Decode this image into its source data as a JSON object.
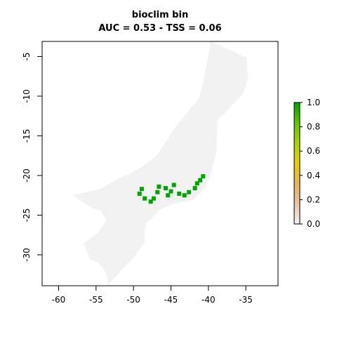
{
  "chart_data": {
    "type": "heatmap",
    "title": "bioclim bin",
    "subtitle": "AUC = 0.53 - TSS = 0.06",
    "xlabel": "",
    "ylabel": "",
    "xlim": [
      -62.2,
      -30.7
    ],
    "ylim": [
      -33.9,
      -3.1
    ],
    "x_ticks": [
      "-60",
      "-55",
      "-50",
      "-45",
      "-40",
      "-35"
    ],
    "x_tick_values": [
      -60,
      -55,
      -50,
      -45,
      -40,
      -35
    ],
    "y_ticks": [
      "-5",
      "-10",
      "-15",
      "-20",
      "-25",
      "-30"
    ],
    "y_tick_values": [
      -5,
      -10,
      -15,
      -20,
      -25,
      -30
    ],
    "grid": false,
    "legend": {
      "placement": "right",
      "range": [
        0,
        1
      ],
      "ticks": [
        "0.0",
        "0.2",
        "0.4",
        "0.6",
        "0.8",
        "1.0"
      ],
      "tick_values": [
        0.0,
        0.2,
        0.4,
        0.6,
        0.8,
        1.0
      ],
      "colors": [
        "#f2f2f2",
        "#e9c3a4",
        "#e8b35a",
        "#e8cf00",
        "#a6d600",
        "#63c400",
        "#00a600"
      ]
    },
    "colors": {
      "absent": "#f2f2f2",
      "present": "#00a600"
    },
    "classes": [
      {
        "value": 0,
        "region_lon_lat": [
          [
            -39.6,
            -3.2
          ],
          [
            -35.0,
            -5.2
          ],
          [
            -34.8,
            -7.8
          ],
          [
            -35.5,
            -9.7
          ],
          [
            -37.3,
            -11.5
          ],
          [
            -38.9,
            -13.0
          ],
          [
            -39.0,
            -17.0
          ],
          [
            -39.7,
            -19.5
          ],
          [
            -40.5,
            -21.5
          ],
          [
            -42.0,
            -23.0
          ],
          [
            -44.5,
            -23.4
          ],
          [
            -46.5,
            -24.2
          ],
          [
            -48.4,
            -26.0
          ],
          [
            -48.7,
            -28.5
          ],
          [
            -50.2,
            -30.5
          ],
          [
            -51.6,
            -31.8
          ],
          [
            -53.3,
            -33.6
          ],
          [
            -53.6,
            -32.2
          ],
          [
            -54.5,
            -31.0
          ],
          [
            -55.7,
            -30.5
          ],
          [
            -56.6,
            -28.6
          ],
          [
            -54.6,
            -27.2
          ],
          [
            -53.5,
            -25.7
          ],
          [
            -54.3,
            -24.4
          ],
          [
            -56.0,
            -23.8
          ],
          [
            -57.9,
            -22.5
          ],
          [
            -54.5,
            -21.8
          ],
          [
            -52.0,
            -20.5
          ],
          [
            -50.2,
            -19.7
          ],
          [
            -48.7,
            -18.9
          ],
          [
            -46.8,
            -17.5
          ],
          [
            -45.6,
            -15.8
          ],
          [
            -44.5,
            -14.2
          ],
          [
            -42.7,
            -12.0
          ],
          [
            -41.2,
            -10.4
          ],
          [
            -40.6,
            -8.2
          ],
          [
            -40.1,
            -5.8
          ]
        ]
      },
      {
        "value": 1,
        "cells_lon_lat": [
          [
            -46.8,
            -22.1
          ],
          [
            -47.3,
            -22.9
          ],
          [
            -47.7,
            -23.3
          ],
          [
            -46.6,
            -21.4
          ],
          [
            -43.2,
            -22.5
          ],
          [
            -43.9,
            -22.3
          ],
          [
            -42.6,
            -22.1
          ],
          [
            -41.1,
            -20.6
          ],
          [
            -40.7,
            -20.1
          ],
          [
            -41.8,
            -21.6
          ],
          [
            -41.5,
            -21.0
          ],
          [
            -45.4,
            -22.5
          ],
          [
            -48.9,
            -21.7
          ],
          [
            -49.2,
            -22.3
          ],
          [
            -45.7,
            -21.6
          ],
          [
            -48.5,
            -22.9
          ],
          [
            -44.6,
            -21.2
          ],
          [
            -45.0,
            -22.0
          ]
        ]
      }
    ]
  }
}
